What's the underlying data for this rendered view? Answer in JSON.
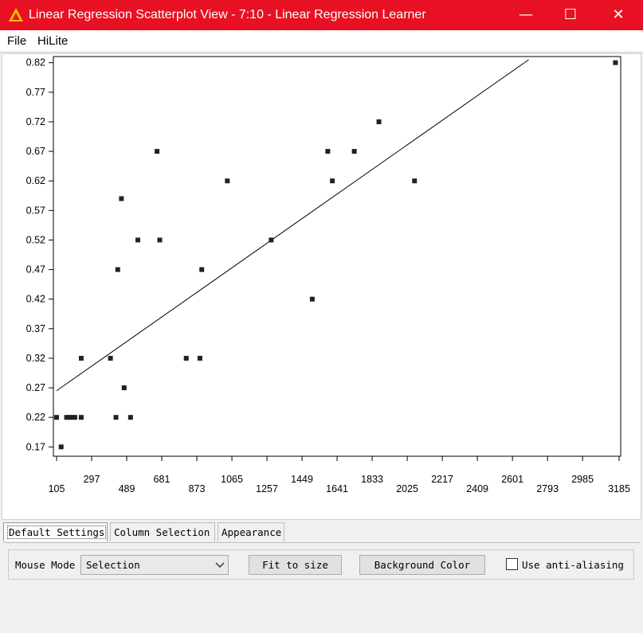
{
  "window": {
    "title": "Linear Regression Scatterplot View - 7:10 - Linear Regression Learner",
    "app_icon": "knime-triangle-icon",
    "controls": {
      "minimize": "—",
      "maximize": "☐",
      "close": "✕"
    }
  },
  "menubar": {
    "items": [
      "File",
      "HiLite"
    ]
  },
  "chart_data": {
    "type": "scatter",
    "x_ticks_upper": [
      "105",
      "489",
      "873",
      "1257",
      "1641",
      "2025",
      "2409",
      "2793",
      "3185"
    ],
    "x_ticks_lower": [
      "297",
      "681",
      "1065",
      "1449",
      "1833",
      "2217",
      "2601",
      "2985"
    ],
    "x_tick_values": [
      105,
      297,
      489,
      681,
      873,
      1065,
      1257,
      1449,
      1641,
      1833,
      2025,
      2217,
      2409,
      2601,
      2793,
      2985,
      3185
    ],
    "y_ticks": [
      "0.82",
      "0.77",
      "0.72",
      "0.67",
      "0.62",
      "0.57",
      "0.52",
      "0.47",
      "0.42",
      "0.37",
      "0.32",
      "0.27",
      "0.22",
      "0.17"
    ],
    "xlim": [
      105,
      3185
    ],
    "ylim": [
      0.165,
      0.825
    ],
    "points": [
      {
        "x": 105,
        "y": 0.22
      },
      {
        "x": 130,
        "y": 0.17
      },
      {
        "x": 160,
        "y": 0.22
      },
      {
        "x": 175,
        "y": 0.22
      },
      {
        "x": 190,
        "y": 0.22
      },
      {
        "x": 205,
        "y": 0.22
      },
      {
        "x": 240,
        "y": 0.22
      },
      {
        "x": 240,
        "y": 0.32
      },
      {
        "x": 400,
        "y": 0.32
      },
      {
        "x": 430,
        "y": 0.22
      },
      {
        "x": 440,
        "y": 0.47
      },
      {
        "x": 460,
        "y": 0.59
      },
      {
        "x": 475,
        "y": 0.27
      },
      {
        "x": 510,
        "y": 0.22
      },
      {
        "x": 550,
        "y": 0.52
      },
      {
        "x": 655,
        "y": 0.67
      },
      {
        "x": 670,
        "y": 0.52
      },
      {
        "x": 815,
        "y": 0.32
      },
      {
        "x": 890,
        "y": 0.32
      },
      {
        "x": 900,
        "y": 0.47
      },
      {
        "x": 1040,
        "y": 0.62
      },
      {
        "x": 1280,
        "y": 0.52
      },
      {
        "x": 1505,
        "y": 0.42
      },
      {
        "x": 1590,
        "y": 0.67
      },
      {
        "x": 1615,
        "y": 0.62
      },
      {
        "x": 1735,
        "y": 0.67
      },
      {
        "x": 1870,
        "y": 0.72
      },
      {
        "x": 2065,
        "y": 0.62
      },
      {
        "x": 3165,
        "y": 0.82
      }
    ],
    "regression_line": [
      {
        "x": 105,
        "y": 0.265
      },
      {
        "x": 2690,
        "y": 0.825
      }
    ]
  },
  "tabs": [
    "Default Settings",
    "Column Selection",
    "Appearance"
  ],
  "settings": {
    "mouse_mode_label": "Mouse Mode",
    "mouse_mode_value": "Selection",
    "fit_button": "Fit to size",
    "bg_color_button": "Background Color",
    "antialias_label": "Use anti-aliasing",
    "antialias_checked": false
  }
}
